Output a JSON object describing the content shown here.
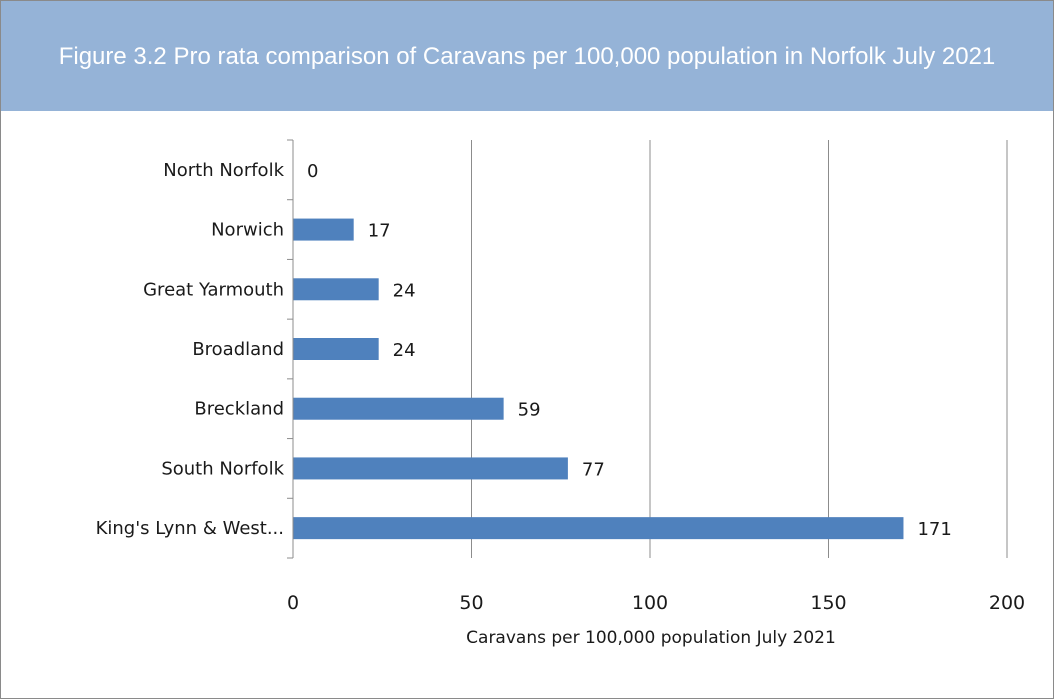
{
  "chart_data": {
    "type": "bar",
    "orientation": "horizontal",
    "title": "Figure 3.2 Pro rata comparison of Caravans per 100,000 population in Norfolk July 2021",
    "categories": [
      "North Norfolk",
      "Norwich",
      "Great Yarmouth",
      "Broadland",
      "Breckland",
      "South Norfolk",
      "King's Lynn & West..."
    ],
    "values": [
      0,
      17,
      24,
      24,
      59,
      77,
      171
    ],
    "data_labels": [
      "0",
      "17",
      "24",
      "24",
      "59",
      "77",
      "171"
    ],
    "xlabel": "Caravans per 100,000 population July 2021",
    "ylabel": "",
    "xlim": [
      0,
      200
    ],
    "xticks": [
      0,
      50,
      100,
      150,
      200
    ],
    "xtick_labels": [
      "0",
      "50",
      "100",
      "150",
      "200"
    ],
    "grid": "vertical",
    "legend": "none",
    "bar_color": "#4f81bd",
    "title_band_color": "#95b3d7"
  }
}
